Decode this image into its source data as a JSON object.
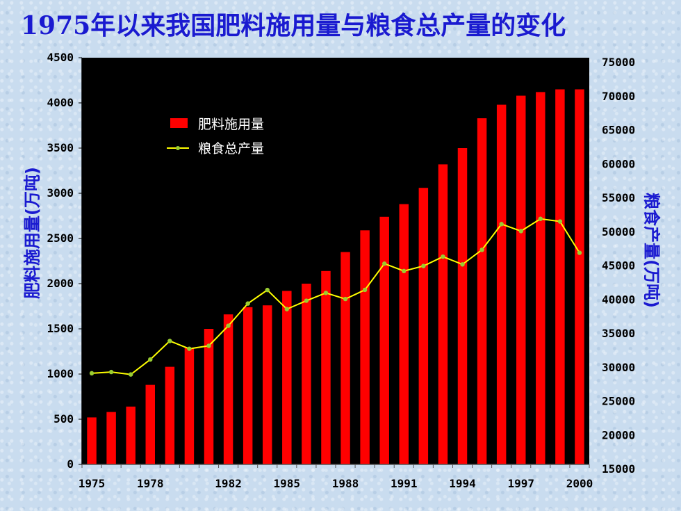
{
  "chart_data": {
    "type": "bar",
    "title": "1975年以来我国肥料施用量与粮食总产量的变化",
    "ylabel_left": "肥料施用量(万吨)",
    "ylabel_right": "粮食产量(万吨)",
    "x": [
      1975,
      1976,
      1977,
      1978,
      1979,
      1980,
      1981,
      1982,
      1983,
      1984,
      1985,
      1986,
      1987,
      1988,
      1989,
      1990,
      1991,
      1992,
      1993,
      1994,
      1995,
      1996,
      1997,
      1998,
      1999,
      2000
    ],
    "x_tick_labels": [
      "1975",
      "1978",
      "1982",
      "1985",
      "1988",
      "1991",
      "1994",
      "1997",
      "2000"
    ],
    "ylim_left": [
      0,
      4500
    ],
    "ylim_right": [
      15000,
      75000
    ],
    "y_ticks_left": [
      0,
      500,
      1000,
      1500,
      2000,
      2500,
      3000,
      3500,
      4000,
      4500
    ],
    "y_ticks_right": [
      15000,
      20000,
      25000,
      30000,
      35000,
      40000,
      45000,
      50000,
      55000,
      60000,
      65000,
      70000,
      75000
    ],
    "series": [
      {
        "name": "肥料施用量",
        "type": "bar",
        "axis": "left",
        "color": "#ff0000",
        "values": [
          520,
          580,
          640,
          880,
          1080,
          1290,
          1500,
          1660,
          1740,
          1760,
          1920,
          2000,
          2140,
          2350,
          2590,
          2740,
          2880,
          3060,
          3320,
          3500,
          3830,
          3980,
          4080,
          4120,
          4150,
          4150
        ]
      },
      {
        "name": "粮食总产量",
        "type": "line",
        "axis": "right",
        "color": "#ffff00",
        "marker_color": "#9acd32",
        "values": [
          28450,
          28630,
          28270,
          30480,
          33210,
          32060,
          32500,
          35450,
          38730,
          40730,
          37910,
          39150,
          40300,
          39400,
          40750,
          44620,
          43530,
          44270,
          45650,
          44510,
          46660,
          50450,
          49420,
          51230,
          50840,
          46220
        ]
      }
    ],
    "legend_position": "top-left",
    "plot_background": "#000000",
    "grid": false
  }
}
